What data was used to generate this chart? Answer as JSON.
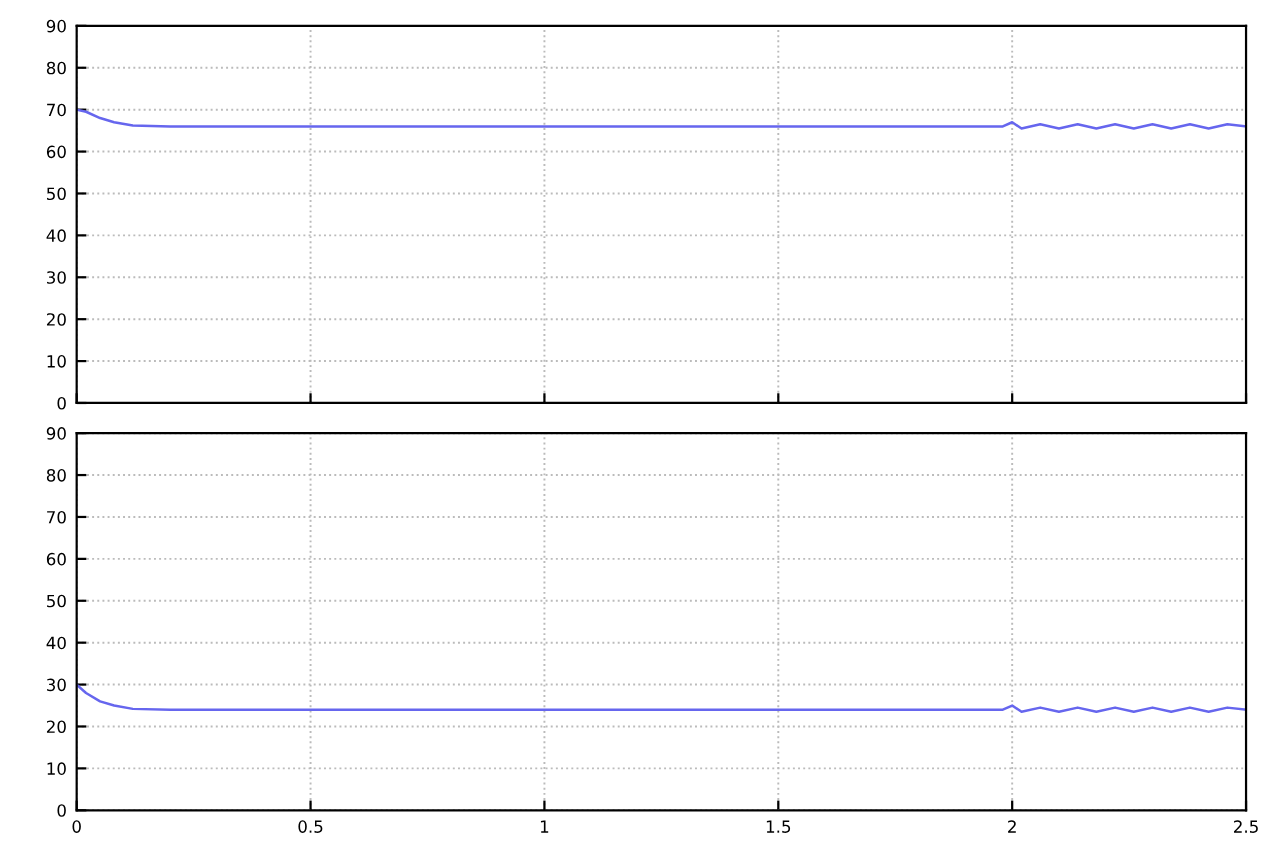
{
  "chart_data": [
    {
      "type": "line",
      "x": [
        0,
        0.02,
        0.05,
        0.08,
        0.12,
        0.2,
        0.5,
        1,
        1.5,
        1.98,
        2.0,
        2.02,
        2.06,
        2.1,
        2.14,
        2.18,
        2.22,
        2.26,
        2.3,
        2.34,
        2.38,
        2.42,
        2.46,
        2.5
      ],
      "series": [
        {
          "color": "#6666ee",
          "values": [
            70,
            69.5,
            68,
            67,
            66.2,
            66,
            66,
            66,
            66,
            66,
            67,
            65.5,
            66.5,
            65.5,
            66.5,
            65.5,
            66.5,
            65.5,
            66.5,
            65.5,
            66.5,
            65.5,
            66.5,
            66
          ]
        }
      ],
      "xlim": [
        0,
        2.5
      ],
      "xticks": [
        0,
        0.5,
        1,
        1.5,
        2,
        2.5
      ],
      "ylim": [
        0,
        90
      ],
      "yticks": [
        0,
        10,
        20,
        30,
        40,
        50,
        60,
        70,
        80,
        90
      ],
      "grid": true,
      "tick_labels": "y"
    },
    {
      "type": "line",
      "x": [
        0,
        0.02,
        0.05,
        0.08,
        0.12,
        0.2,
        0.5,
        1,
        1.5,
        1.98,
        2.0,
        2.02,
        2.06,
        2.1,
        2.14,
        2.18,
        2.22,
        2.26,
        2.3,
        2.34,
        2.38,
        2.42,
        2.46,
        2.5
      ],
      "series": [
        {
          "color": "#6666ee",
          "values": [
            30,
            28,
            26,
            25,
            24.2,
            24,
            24,
            24,
            24,
            24,
            25,
            23.5,
            24.5,
            23.5,
            24.5,
            23.5,
            24.5,
            23.5,
            24.5,
            23.5,
            24.5,
            23.5,
            24.5,
            24
          ]
        }
      ],
      "xlim": [
        0,
        2.5
      ],
      "xticks": [
        0,
        0.5,
        1,
        1.5,
        2,
        2.5
      ],
      "ylim": [
        0,
        90
      ],
      "yticks": [
        0,
        10,
        20,
        30,
        40,
        50,
        60,
        70,
        80,
        90
      ],
      "grid": true
    }
  ]
}
